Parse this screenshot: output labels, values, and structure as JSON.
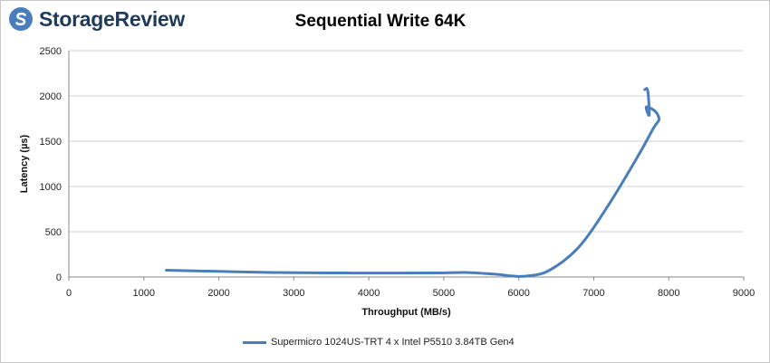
{
  "brand": {
    "name": "StorageReview",
    "logo_color": "#4a7ebb"
  },
  "chart_data": {
    "type": "line",
    "title": "Sequential Write 64K",
    "xlabel": "Throughput (MB/s)",
    "ylabel": "Latency (µs)",
    "xlim": [
      0,
      9000
    ],
    "ylim": [
      0,
      2500
    ],
    "xticks": [
      "0",
      "1000",
      "2000",
      "3000",
      "4000",
      "5000",
      "6000",
      "7000",
      "8000",
      "9000"
    ],
    "yticks": [
      "0",
      "500",
      "1000",
      "1500",
      "2000",
      "2500"
    ],
    "grid": "horizontal",
    "legend_position": "bottom",
    "series": [
      {
        "name": "Supermicro 1024US-TRT 4 x Intel P5510 3.84TB Gen4",
        "color": "#4a7ebb",
        "x": [
          1300,
          2000,
          2700,
          3500,
          4300,
          4900,
          5300,
          5700,
          5900,
          6100,
          6400,
          6800,
          7200,
          7600,
          7800,
          7870,
          7820,
          7700,
          7740,
          7720,
          7680
        ],
        "y": [
          75,
          62,
          50,
          45,
          44,
          45,
          50,
          30,
          12,
          10,
          70,
          330,
          800,
          1350,
          1650,
          1740,
          1830,
          1880,
          1790,
          2060,
          2070
        ]
      }
    ]
  }
}
